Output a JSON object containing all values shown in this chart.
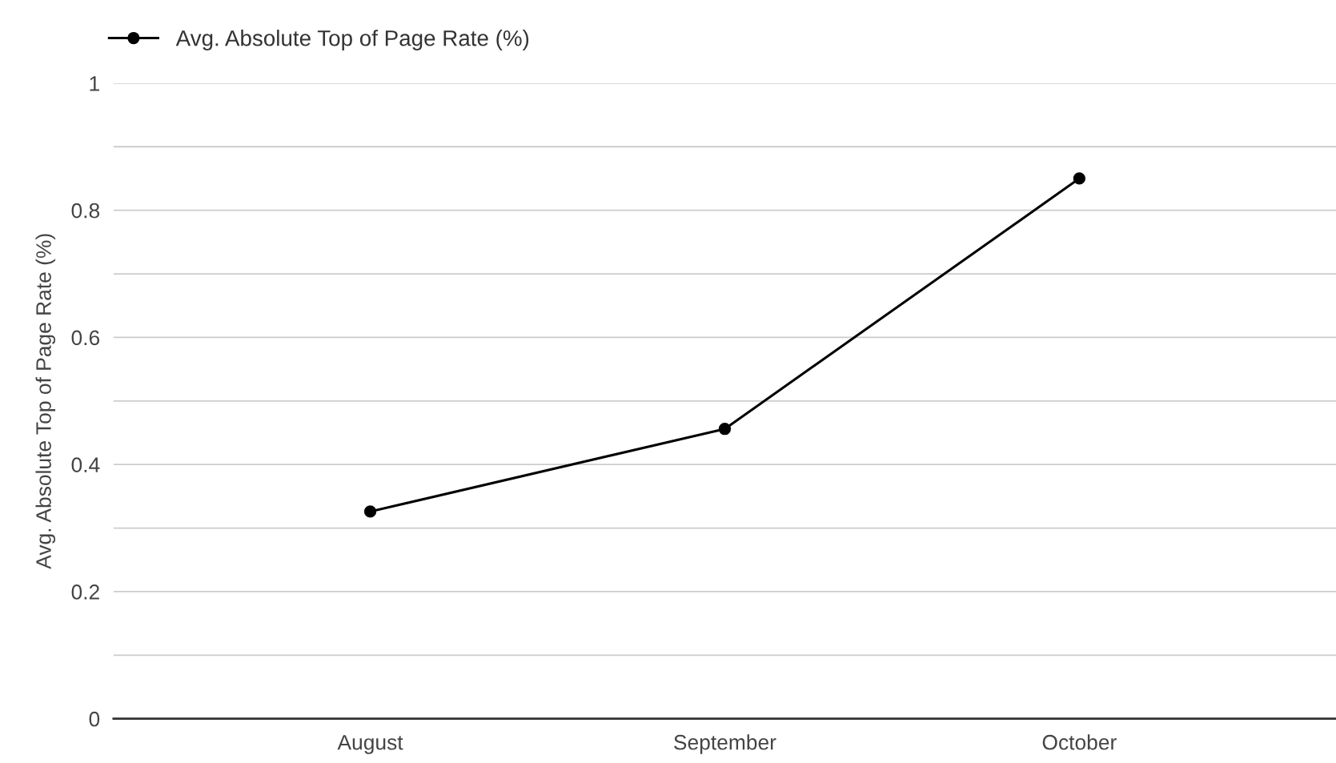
{
  "chart_data": {
    "type": "line",
    "ylabel": "Avg. Absolute Top of Page Rate (%)",
    "categories": [
      "August",
      "September",
      "October"
    ],
    "series": [
      {
        "name": "Avg. Absolute Top of Page Rate (%)",
        "color": "#000000",
        "values": [
          0.326,
          0.456,
          0.85
        ]
      }
    ],
    "ylim": [
      0,
      1
    ],
    "yticks": [
      0,
      {
        "value": 0.1,
        "label": null
      },
      0.2,
      {
        "value": 0.3,
        "label": null
      },
      0.4,
      {
        "value": 0.5,
        "label": null
      },
      0.6,
      {
        "value": 0.7,
        "label": null
      },
      0.8,
      {
        "value": 0.9,
        "label": null
      },
      1
    ],
    "grid": "y",
    "legend": "top left",
    "marker": "circle",
    "line_style": "solid"
  }
}
